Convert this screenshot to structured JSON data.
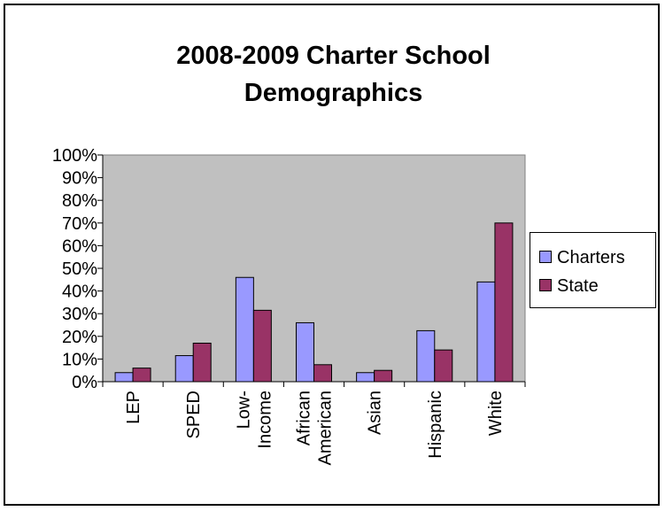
{
  "chart_data": {
    "type": "bar",
    "title_lines": [
      "2008-2009 Charter School",
      "Demographics"
    ],
    "categories": [
      [
        "LEP"
      ],
      [
        "SPED"
      ],
      [
        "Low-",
        "Income"
      ],
      [
        "African",
        "American"
      ],
      [
        "Asian"
      ],
      [
        "Hispanic"
      ],
      [
        "White"
      ]
    ],
    "series": [
      {
        "name": "Charters",
        "color": "#9999ff",
        "values": [
          4,
          11.5,
          46,
          26,
          4,
          22.5,
          44
        ]
      },
      {
        "name": "State",
        "color": "#993366",
        "values": [
          6,
          17,
          31.5,
          7.5,
          5,
          14,
          70
        ]
      }
    ],
    "ylim": [
      0,
      100
    ],
    "yticks": [
      "0%",
      "10%",
      "20%",
      "30%",
      "40%",
      "50%",
      "60%",
      "70%",
      "80%",
      "90%",
      "100%"
    ],
    "plot_background": "#c0c0c0",
    "grid": false,
    "legend_position": "right"
  }
}
